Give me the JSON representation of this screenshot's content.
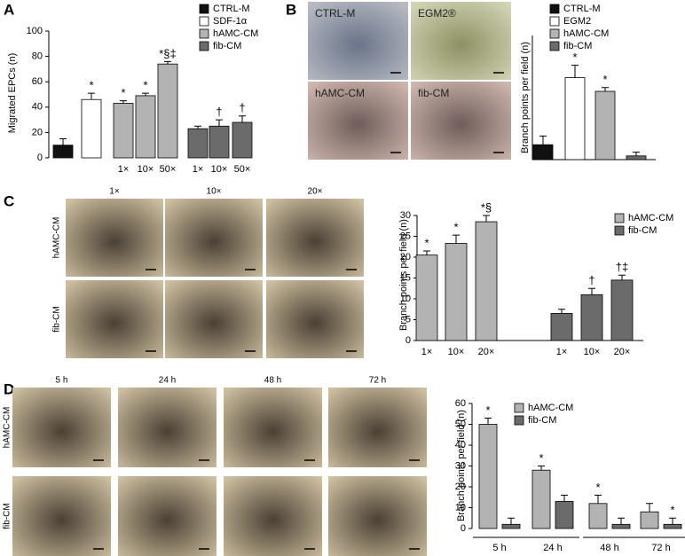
{
  "panel_labels": [
    "A",
    "B",
    "C",
    "D"
  ],
  "micrographs": {
    "B": {
      "labels": [
        "CTRL-M",
        "EGM2®",
        "hAMC-CM",
        "fib-CM"
      ]
    },
    "C": {
      "columns": [
        "1×",
        "10×",
        "20×"
      ],
      "rows": [
        "hAMC-CM",
        "fib-CM"
      ]
    },
    "D": {
      "columns": [
        "5 h",
        "24 h",
        "48 h",
        "72 h"
      ],
      "rows": [
        "hAMC-CM",
        "fib-CM"
      ]
    }
  },
  "chart_data": [
    {
      "type": "bar",
      "y_label": "Migrated EPCs (n)",
      "categories": [
        null,
        null,
        "1×",
        "10×",
        "50×",
        "1×",
        "10×",
        "50×"
      ],
      "series": [
        {
          "name": "CTRL-M",
          "color": "#111111",
          "values": [
            10,
            null,
            null,
            null,
            null,
            null,
            null,
            null
          ],
          "errors": [
            5,
            null,
            null,
            null,
            null,
            null,
            null,
            null
          ]
        },
        {
          "name": "SDF-1α",
          "color": "#ffffff",
          "values": [
            null,
            46,
            null,
            null,
            null,
            null,
            null,
            null
          ],
          "errors": [
            null,
            5,
            null,
            null,
            null,
            null,
            null,
            null
          ],
          "labels": [
            null,
            "*",
            null,
            null,
            null,
            null,
            null,
            null
          ]
        },
        {
          "name": "hAMC-CM",
          "color": "#b3b3b3",
          "values": [
            null,
            null,
            43,
            49,
            74,
            null,
            null,
            null
          ],
          "errors": [
            null,
            null,
            2,
            2,
            2,
            null,
            null,
            null
          ],
          "labels": [
            null,
            null,
            "*",
            "*",
            "*§‡",
            null,
            null,
            null
          ]
        },
        {
          "name": "fib-CM",
          "color": "#6b6b6b",
          "values": [
            null,
            null,
            null,
            null,
            null,
            23,
            25,
            28
          ],
          "errors": [
            null,
            null,
            null,
            null,
            null,
            2,
            5,
            5
          ],
          "labels": [
            null,
            null,
            null,
            null,
            null,
            null,
            "†",
            "†"
          ]
        }
      ],
      "ylim": [
        0,
        100
      ],
      "yticks": [
        0,
        20,
        40,
        60,
        80,
        100
      ],
      "legend": "top-right"
    },
    {
      "type": "bar",
      "y_label": "Branch points per field (n)",
      "categories": [
        null,
        null,
        null,
        null
      ],
      "series": [
        {
          "name": "CTRL-M",
          "color": "#111111",
          "values": [
            12,
            null,
            null,
            null
          ],
          "errors": [
            7,
            null,
            null,
            null
          ]
        },
        {
          "name": "EGM2",
          "color": "#ffffff",
          "values": [
            null,
            66,
            null,
            null
          ],
          "errors": [
            null,
            10,
            null,
            null
          ],
          "labels": [
            null,
            "*",
            null,
            null
          ]
        },
        {
          "name": "hAMC-CM",
          "color": "#b3b3b3",
          "values": [
            null,
            null,
            55,
            null
          ],
          "errors": [
            null,
            null,
            3,
            null
          ],
          "labels": [
            null,
            null,
            "*",
            null
          ]
        },
        {
          "name": "fib-CM",
          "color": "#6b6b6b",
          "values": [
            null,
            null,
            null,
            3
          ],
          "errors": [
            null,
            null,
            null,
            3
          ]
        }
      ],
      "ylim": [
        0,
        100
      ],
      "legend": "top-right"
    },
    {
      "type": "bar",
      "y_label": "Branch points per field (n)",
      "categories": [
        "1×",
        "10×",
        "20×",
        "1×",
        "10×",
        "20×"
      ],
      "series": [
        {
          "name": "hAMC-CM",
          "color": "#b3b3b3",
          "values": [
            20.5,
            23.3,
            28.5,
            null,
            null,
            null
          ],
          "errors": [
            1,
            2,
            1.5,
            null,
            null,
            null
          ],
          "labels": [
            "*",
            "*",
            "*§",
            null,
            null,
            null
          ]
        },
        {
          "name": "fib-CM",
          "color": "#6b6b6b",
          "values": [
            null,
            null,
            null,
            6.5,
            11,
            14.5
          ],
          "errors": [
            null,
            null,
            null,
            1,
            1.5,
            1.2
          ],
          "labels": [
            null,
            null,
            null,
            null,
            "†",
            "†‡"
          ]
        }
      ],
      "ylim": [
        0,
        30
      ],
      "yticks": [
        0,
        5,
        10,
        15,
        20,
        25,
        30
      ],
      "legend": "top-right"
    },
    {
      "type": "bar",
      "y_label": "Branch points per field (n)",
      "categories": [
        "5 h",
        "24 h",
        "48 h",
        "72 h"
      ],
      "series": [
        {
          "name": "hAMC-CM",
          "color": "#b3b3b3",
          "values": [
            50,
            28,
            12,
            8
          ],
          "errors": [
            3,
            2,
            4,
            4
          ],
          "labels": [
            "*",
            "*",
            "*",
            null
          ]
        },
        {
          "name": "fib-CM",
          "color": "#6b6b6b",
          "values": [
            2,
            13,
            2,
            2
          ],
          "errors": [
            3,
            3,
            3,
            3
          ],
          "labels": [
            null,
            null,
            null,
            "*"
          ]
        }
      ],
      "ylim": [
        0,
        60
      ],
      "yticks": [
        0,
        10,
        20,
        30,
        40,
        50,
        60
      ],
      "legend": "top-left"
    }
  ]
}
